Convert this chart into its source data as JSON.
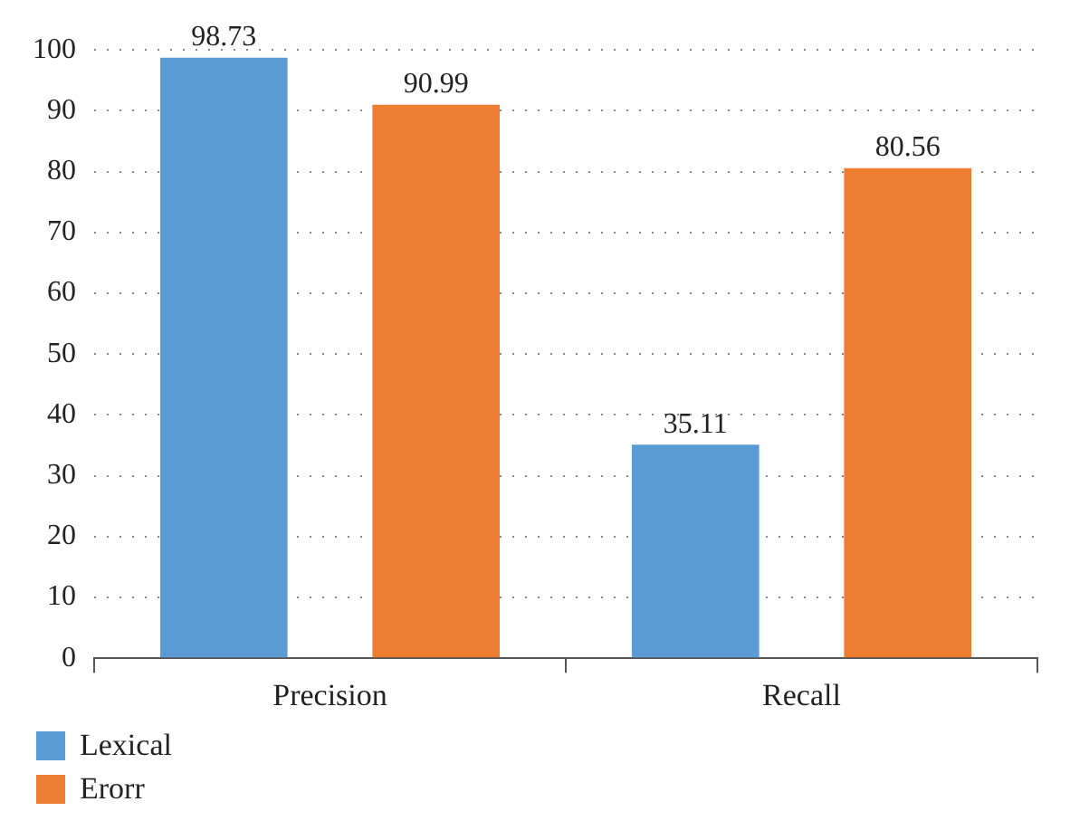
{
  "chart_data": {
    "type": "bar",
    "categories": [
      "Precision",
      "Recall"
    ],
    "series": [
      {
        "name": "Lexical",
        "color": "#5b9bd5",
        "values": [
          98.73,
          35.11
        ]
      },
      {
        "name": "Erorr",
        "color": "#ed7d31",
        "values": [
          90.99,
          80.56
        ]
      }
    ],
    "ylim": [
      0,
      100
    ],
    "yticks": [
      0,
      10,
      20,
      30,
      40,
      50,
      60,
      70,
      80,
      90,
      100
    ],
    "grid": "y",
    "legend": "bottom left",
    "data_labels": true
  }
}
